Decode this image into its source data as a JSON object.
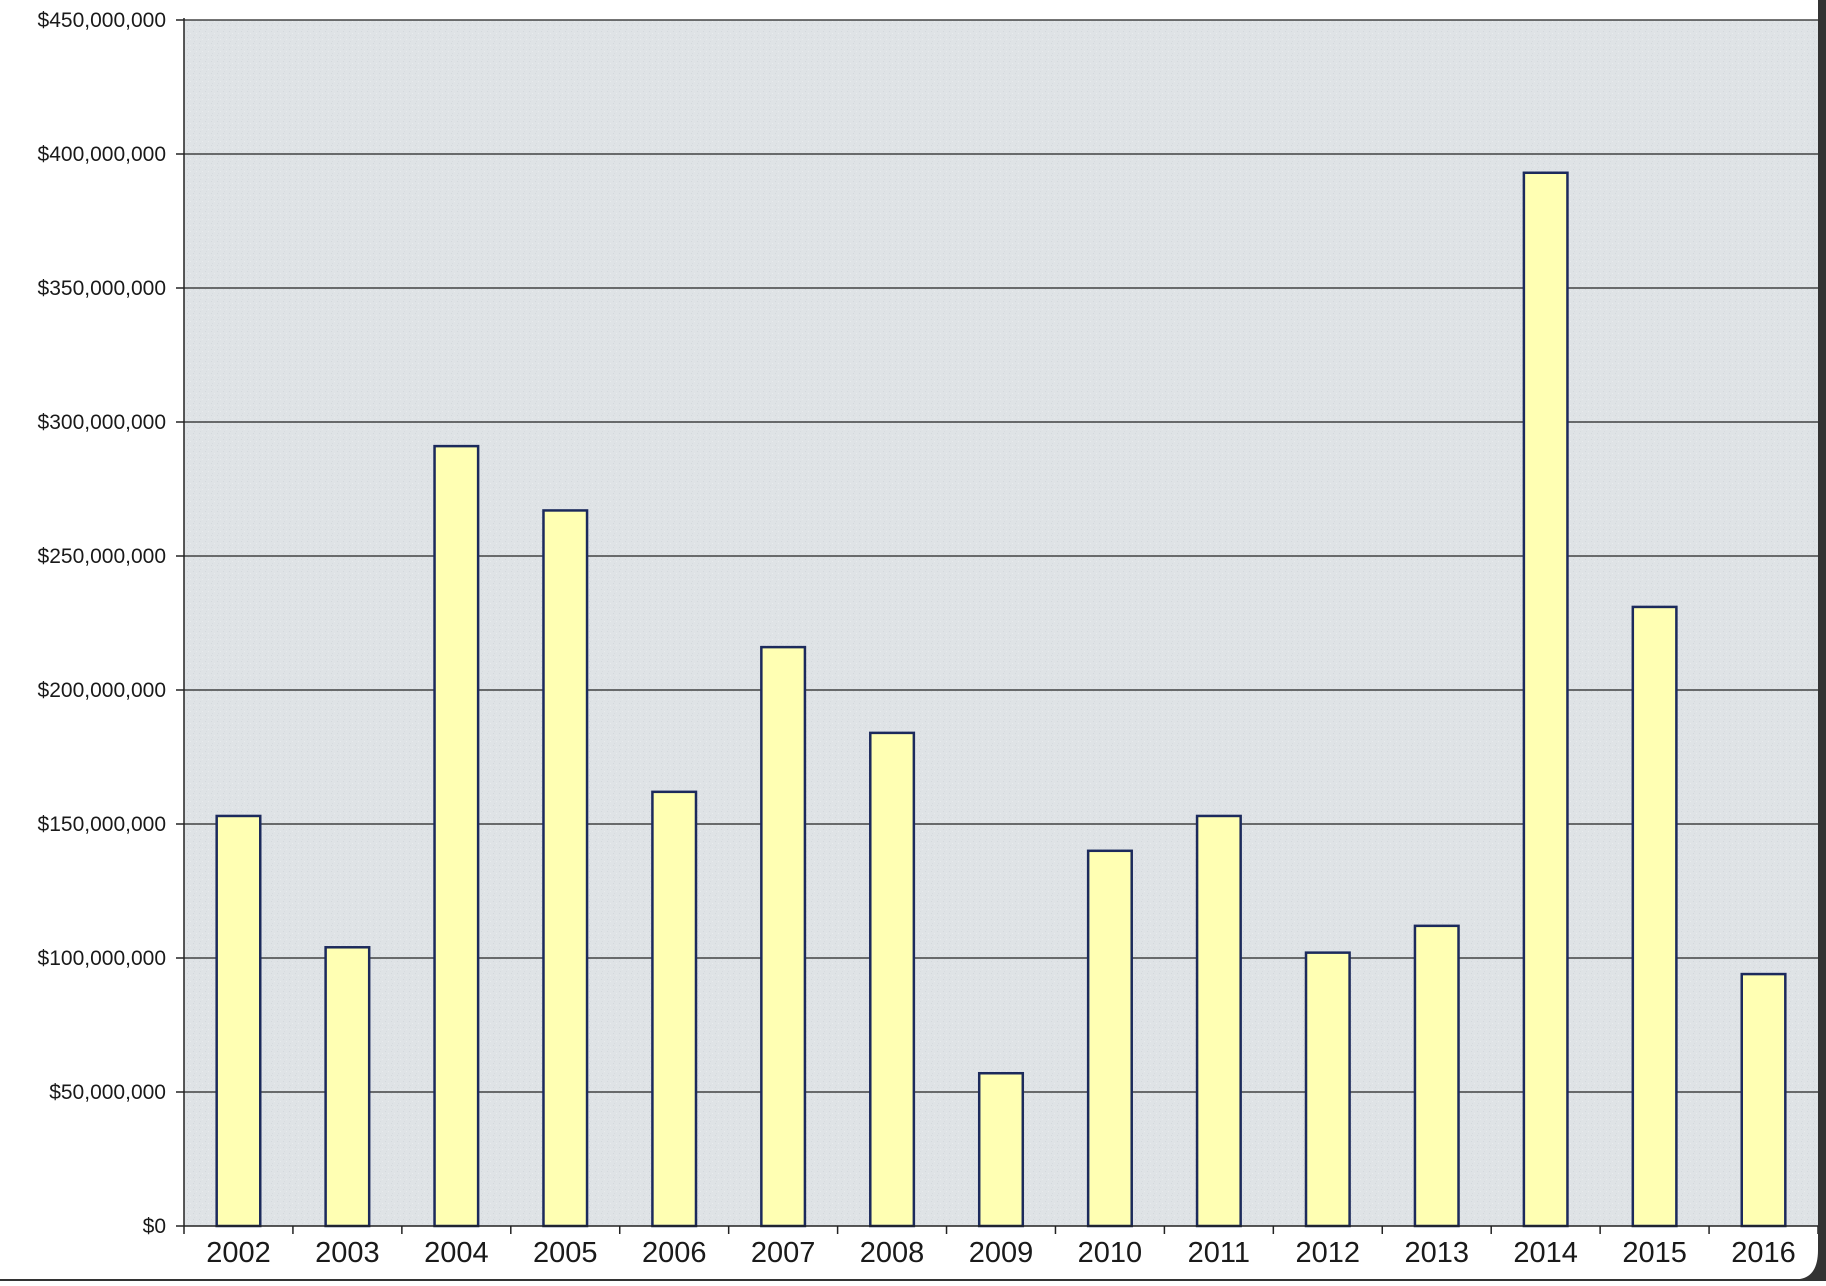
{
  "chart_data": {
    "type": "bar",
    "title": "",
    "xlabel": "",
    "ylabel": "",
    "categories": [
      "2002",
      "2003",
      "2004",
      "2005",
      "2006",
      "2007",
      "2008",
      "2009",
      "2010",
      "2011",
      "2012",
      "2013",
      "2014",
      "2015",
      "2016"
    ],
    "values": [
      153000000,
      104000000,
      291000000,
      267000000,
      162000000,
      216000000,
      184000000,
      57000000,
      140000000,
      153000000,
      102000000,
      112000000,
      393000000,
      231000000,
      94000000
    ],
    "ylim": [
      0,
      450000000
    ],
    "yticks": [
      0,
      50000000,
      100000000,
      150000000,
      200000000,
      250000000,
      300000000,
      350000000,
      400000000,
      450000000
    ],
    "ytick_labels": [
      "$0",
      "$50,000,000",
      "$100,000,000",
      "$150,000,000",
      "$200,000,000",
      "$250,000,000",
      "$300,000,000",
      "$350,000,000",
      "$400,000,000",
      "$450,000,000"
    ],
    "grid": true,
    "legend": "none"
  },
  "colors": {
    "plot_background": "#dfe3e6",
    "bar_fill": "#ffffb3",
    "bar_stroke": "#1c2a5c",
    "grid": "#222222",
    "axis": "#222222",
    "text": "#1a1a1a"
  }
}
